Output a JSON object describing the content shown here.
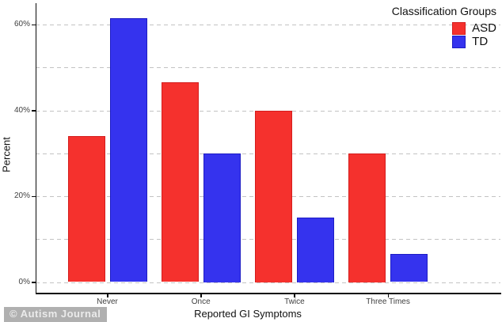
{
  "watermark": "© Autism Journal",
  "chart_data": {
    "type": "bar",
    "title": "",
    "xlabel": "Reported GI Symptoms",
    "ylabel": "Percent",
    "categories": [
      "Never",
      "Once",
      "Twice",
      "Three Times"
    ],
    "series": [
      {
        "name": "ASD",
        "color": "#f5312d",
        "border_color": "#d41d1d",
        "values": [
          34,
          46.5,
          40,
          30
        ]
      },
      {
        "name": "TD",
        "color": "#3533ee",
        "border_color": "#1d1cc4",
        "values": [
          61.5,
          30,
          15,
          6.5
        ]
      }
    ],
    "ylim": [
      0,
      65
    ],
    "y_ticks": [
      {
        "value": 0,
        "label": "0%"
      },
      {
        "value": 20,
        "label": "20%"
      },
      {
        "value": 40,
        "label": "40%"
      },
      {
        "value": 60,
        "label": "60%"
      }
    ],
    "gridline_values": [
      0,
      10,
      20,
      30,
      40,
      50,
      60
    ],
    "grid_style": "horizontal-dashed",
    "legend_title": "Classification Groups",
    "legend_position": "top-right"
  }
}
